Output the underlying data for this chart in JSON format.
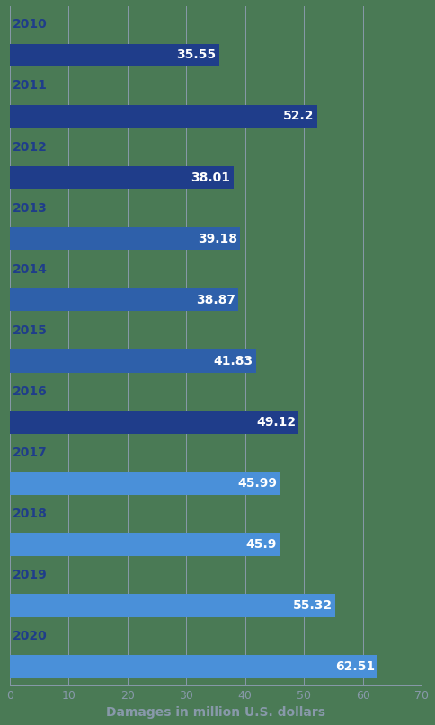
{
  "years": [
    "2010",
    "2011",
    "2012",
    "2013",
    "2014",
    "2015",
    "2016",
    "2017",
    "2018",
    "2019",
    "2020"
  ],
  "values": [
    35.55,
    52.2,
    38.01,
    39.18,
    38.87,
    41.83,
    49.12,
    45.99,
    45.9,
    55.32,
    62.51
  ],
  "bar_colors": [
    "#1f3d8a",
    "#1f3d8a",
    "#1f3d8a",
    "#2e60aa",
    "#2e60aa",
    "#2e60aa",
    "#1f3d8a",
    "#4a90d9",
    "#4a90d9",
    "#4a90d9",
    "#4a90d9"
  ],
  "label_color": "#ffffff",
  "background_color": "#4a7a55",
  "xlabel": "Damages in million U.S. dollars",
  "xlim": [
    0,
    70
  ],
  "xticks": [
    0,
    10,
    20,
    30,
    40,
    50,
    60,
    70
  ],
  "grid_color": "#8899aa",
  "year_label_color": "#1f3d8a",
  "tick_label_color": "#8899aa",
  "xlabel_color": "#8899aa",
  "year_label_fontsize": 10,
  "value_label_fontsize": 10,
  "xlabel_fontsize": 10
}
